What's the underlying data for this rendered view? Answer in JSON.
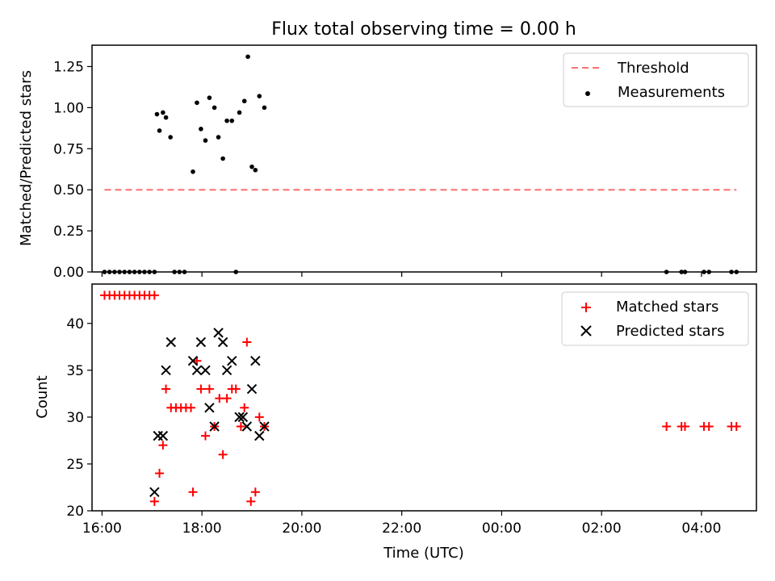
{
  "chart_data": [
    {
      "type": "scatter",
      "title": "Flux total observing time = 0.00 h",
      "ylabel": "Matched/Predicted stars",
      "xlabel": "",
      "x_unit": "time_utc_hours_from_16:00",
      "xlim": [
        15.8,
        29.1
      ],
      "ylim": [
        0.0,
        1.38
      ],
      "yticks": [
        "0.00",
        "0.25",
        "0.50",
        "0.75",
        "1.00",
        "1.25"
      ],
      "ytick_values": [
        0,
        0.25,
        0.5,
        0.75,
        1.0,
        1.25
      ],
      "legend_location": "upper right",
      "legend": [
        "Threshold",
        "Measurements"
      ],
      "series": [
        {
          "name": "Threshold",
          "kind": "line",
          "style": "dashed",
          "color": "#ff6f6f",
          "points": [
            [
              16.05,
              0.5
            ],
            [
              28.7,
              0.5
            ]
          ]
        },
        {
          "name": "Measurements",
          "kind": "scatter",
          "marker": "dot",
          "color": "#000000",
          "points": [
            [
              16.05,
              0
            ],
            [
              16.15,
              0
            ],
            [
              16.25,
              0
            ],
            [
              16.35,
              0
            ],
            [
              16.45,
              0
            ],
            [
              16.55,
              0
            ],
            [
              16.65,
              0
            ],
            [
              16.75,
              0
            ],
            [
              16.85,
              0
            ],
            [
              16.95,
              0
            ],
            [
              17.05,
              0
            ],
            [
              17.1,
              0.96
            ],
            [
              17.15,
              0.86
            ],
            [
              17.22,
              0.97
            ],
            [
              17.28,
              0.94
            ],
            [
              17.37,
              0.82
            ],
            [
              17.45,
              0
            ],
            [
              17.55,
              0
            ],
            [
              17.65,
              0
            ],
            [
              17.82,
              0.61
            ],
            [
              17.9,
              1.03
            ],
            [
              17.98,
              0.87
            ],
            [
              18.07,
              0.8
            ],
            [
              18.15,
              1.06
            ],
            [
              18.25,
              1.0
            ],
            [
              18.33,
              0.82
            ],
            [
              18.42,
              0.69
            ],
            [
              18.5,
              0.92
            ],
            [
              18.6,
              0.92
            ],
            [
              18.68,
              0
            ],
            [
              18.75,
              0.97
            ],
            [
              18.85,
              1.04
            ],
            [
              18.92,
              1.31
            ],
            [
              19.0,
              0.64
            ],
            [
              19.07,
              0.62
            ],
            [
              19.15,
              1.07
            ],
            [
              19.25,
              1.0
            ],
            [
              27.3,
              0
            ],
            [
              27.6,
              0
            ],
            [
              27.67,
              0
            ],
            [
              28.05,
              0
            ],
            [
              28.15,
              0
            ],
            [
              28.6,
              0
            ],
            [
              28.7,
              0
            ]
          ]
        }
      ]
    },
    {
      "type": "scatter",
      "title": "",
      "ylabel": "Count",
      "xlabel": "Time (UTC)",
      "x_unit": "time_utc_hours_from_16:00",
      "xlim": [
        15.8,
        29.1
      ],
      "ylim": [
        20.0,
        44.2
      ],
      "yticks": [
        "20",
        "25",
        "30",
        "35",
        "40"
      ],
      "ytick_values": [
        20,
        25,
        30,
        35,
        40
      ],
      "xticks": [
        "16:00",
        "18:00",
        "20:00",
        "22:00",
        "00:00",
        "02:00",
        "04:00"
      ],
      "xtick_values": [
        16,
        18,
        20,
        22,
        24,
        26,
        28
      ],
      "legend_location": "upper right",
      "legend": [
        "Matched stars",
        "Predicted stars"
      ],
      "series": [
        {
          "name": "Matched stars",
          "kind": "scatter",
          "marker": "plus",
          "color": "#ff0000",
          "points": [
            [
              16.05,
              43
            ],
            [
              16.15,
              43
            ],
            [
              16.25,
              43
            ],
            [
              16.35,
              43
            ],
            [
              16.45,
              43
            ],
            [
              16.55,
              43
            ],
            [
              16.65,
              43
            ],
            [
              16.75,
              43
            ],
            [
              16.85,
              43
            ],
            [
              16.95,
              43
            ],
            [
              17.05,
              43
            ],
            [
              17.05,
              21
            ],
            [
              17.15,
              24
            ],
            [
              17.22,
              27
            ],
            [
              17.28,
              33
            ],
            [
              17.38,
              31
            ],
            [
              17.48,
              31
            ],
            [
              17.58,
              31
            ],
            [
              17.68,
              31
            ],
            [
              17.78,
              31
            ],
            [
              17.82,
              22
            ],
            [
              17.9,
              36
            ],
            [
              17.98,
              33
            ],
            [
              18.07,
              28
            ],
            [
              18.15,
              33
            ],
            [
              18.25,
              29
            ],
            [
              18.35,
              32
            ],
            [
              18.42,
              26
            ],
            [
              18.5,
              32
            ],
            [
              18.6,
              33
            ],
            [
              18.68,
              33
            ],
            [
              18.78,
              29
            ],
            [
              18.85,
              31
            ],
            [
              18.9,
              38
            ],
            [
              18.98,
              21
            ],
            [
              19.07,
              22
            ],
            [
              19.15,
              30
            ],
            [
              19.25,
              29
            ],
            [
              27.3,
              29
            ],
            [
              27.6,
              29
            ],
            [
              27.67,
              29
            ],
            [
              28.05,
              29
            ],
            [
              28.15,
              29
            ],
            [
              28.6,
              29
            ],
            [
              28.7,
              29
            ]
          ]
        },
        {
          "name": "Predicted stars",
          "kind": "scatter",
          "marker": "x",
          "color": "#000000",
          "points": [
            [
              17.05,
              22
            ],
            [
              17.12,
              28
            ],
            [
              17.22,
              28
            ],
            [
              17.28,
              35
            ],
            [
              17.38,
              38
            ],
            [
              17.82,
              36
            ],
            [
              17.9,
              35
            ],
            [
              17.98,
              38
            ],
            [
              18.07,
              35
            ],
            [
              18.15,
              31
            ],
            [
              18.25,
              29
            ],
            [
              18.33,
              39
            ],
            [
              18.42,
              38
            ],
            [
              18.5,
              35
            ],
            [
              18.6,
              36
            ],
            [
              18.75,
              30
            ],
            [
              18.82,
              30
            ],
            [
              18.9,
              29
            ],
            [
              19.0,
              33
            ],
            [
              19.07,
              36
            ],
            [
              19.15,
              28
            ],
            [
              19.25,
              29
            ]
          ]
        }
      ]
    }
  ]
}
